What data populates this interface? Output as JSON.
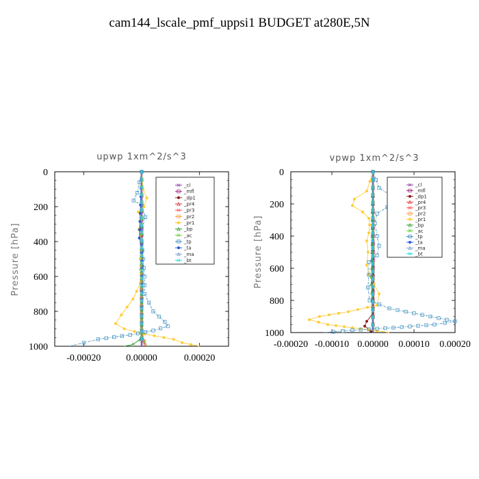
{
  "figure_title": "cam144_lscale_pmf_uppsi1  BUDGET at280E,5N",
  "chart_data": [
    {
      "type": "line",
      "title": "upwp   1xm^2/s^3",
      "ylabel": "Pressure [hPa]",
      "xlim": [
        -0.0003,
        0.0003
      ],
      "ylim": [
        1000,
        0
      ],
      "xticks": [
        -0.0002,
        0,
        0.0002
      ],
      "xtick_labels": [
        "-0.00020",
        "0.00000",
        "0.00020"
      ],
      "yticks": [
        0,
        200,
        400,
        600,
        800,
        1000
      ],
      "ytick_labels": [
        "0",
        "200",
        "400",
        "600",
        "800",
        "1000"
      ],
      "legend_position": "upper-right",
      "series": [
        {
          "name": "_cl",
          "color": "#8e44ad",
          "points": [
            [
              0,
              0
            ],
            [
              0,
              500
            ],
            [
              0,
              1000
            ]
          ]
        },
        {
          "name": "_mfl",
          "color": "#9b1b7a",
          "points": [
            [
              0,
              0
            ],
            [
              0,
              500
            ],
            [
              0,
              1000
            ]
          ]
        },
        {
          "name": "_dp1",
          "color": "#8b1a1a",
          "points": [
            [
              0,
              0
            ],
            [
              0,
              500
            ],
            [
              0,
              1000
            ]
          ]
        },
        {
          "name": "_pr4",
          "color": "#e03030",
          "points": [
            [
              0,
              0
            ],
            [
              0,
              900
            ],
            [
              5e-06,
              960
            ],
            [
              1e-05,
              1000
            ]
          ]
        },
        {
          "name": "_pr3",
          "color": "#ff5050",
          "points": [
            [
              0,
              0
            ],
            [
              0,
              900
            ],
            [
              8e-06,
              970
            ],
            [
              1.5e-05,
              1000
            ]
          ]
        },
        {
          "name": "_pr2",
          "color": "#ff9933",
          "points": [
            [
              0,
              0
            ],
            [
              0,
              1000
            ]
          ]
        },
        {
          "name": "_pr1",
          "color": "#ffcc33",
          "points": [
            [
              0,
              0
            ],
            [
              5e-06,
              100
            ],
            [
              1.8e-05,
              150
            ],
            [
              8e-06,
              200
            ],
            [
              -1.2e-05,
              230
            ],
            [
              0,
              270
            ],
            [
              -1e-05,
              330
            ],
            [
              0,
              400
            ],
            [
              -5e-06,
              500
            ],
            [
              -5e-06,
              560
            ],
            [
              -5e-06,
              640
            ],
            [
              -3e-05,
              730
            ],
            [
              -7e-05,
              820
            ],
            [
              -9e-05,
              870
            ],
            [
              -6e-05,
              900
            ],
            [
              1e-05,
              930
            ],
            [
              0.00011,
              960
            ],
            [
              0.00014,
              980
            ],
            [
              0.0002,
              1000
            ]
          ]
        },
        {
          "name": "_bp",
          "color": "#339933",
          "points": [
            [
              0,
              0
            ],
            [
              0,
              920
            ],
            [
              -5e-06,
              960
            ],
            [
              -3e-05,
              990
            ],
            [
              -6e-05,
              1000
            ]
          ]
        },
        {
          "name": "_ac",
          "color": "#66cc33",
          "points": [
            [
              0,
              0
            ],
            [
              0,
              940
            ],
            [
              1e-05,
              975
            ],
            [
              2e-05,
              1000
            ]
          ]
        },
        {
          "name": "_tp",
          "color": "#3388bb",
          "points": [
            [
              0,
              0
            ],
            [
              -1.5e-05,
              120
            ],
            [
              -2.8e-05,
              165
            ],
            [
              0,
              190
            ],
            [
              1.3e-05,
              260
            ],
            [
              0,
              330
            ],
            [
              0,
              400
            ],
            [
              5e-06,
              500
            ],
            [
              1e-05,
              600
            ],
            [
              1e-05,
              700
            ],
            [
              4e-05,
              800
            ],
            [
              8e-05,
              860
            ],
            [
              9e-05,
              885
            ],
            [
              4e-05,
              910
            ],
            [
              -4e-05,
              935
            ],
            [
              -0.00015,
              960
            ],
            [
              -0.0002,
              980
            ],
            [
              -0.00025,
              1000
            ]
          ]
        },
        {
          "name": "_ta",
          "color": "#2255dd",
          "points": [
            [
              0,
              0
            ],
            [
              -8e-06,
              380
            ],
            [
              0,
              420
            ],
            [
              0,
              1000
            ]
          ]
        },
        {
          "name": "_ma",
          "color": "#7799cc",
          "points": [
            [
              0,
              0
            ],
            [
              0,
              1000
            ]
          ]
        },
        {
          "name": "_bt",
          "color": "#22dddd",
          "points": [
            [
              0,
              0
            ],
            [
              0,
              1000
            ]
          ]
        }
      ]
    },
    {
      "type": "line",
      "title": "vpwp   1xm^2/s^3",
      "ylabel": "Pressure [hPa]",
      "xlim": [
        -0.0002,
        0.0002
      ],
      "ylim": [
        1000,
        0
      ],
      "xticks": [
        -0.0002,
        -0.0001,
        0,
        0.0001,
        0.0002
      ],
      "xtick_labels": [
        "-0.00020",
        "-0.00010",
        "0.00000",
        "0.00010",
        "0.00020"
      ],
      "yticks": [
        0,
        200,
        400,
        600,
        800,
        1000
      ],
      "ytick_labels": [
        "0",
        "200",
        "400",
        "600",
        "800",
        "1000"
      ],
      "legend_position": "upper-right",
      "series": [
        {
          "name": "_cl",
          "color": "#8e44ad",
          "points": [
            [
              0,
              0
            ],
            [
              0,
              500
            ],
            [
              0,
              1000
            ]
          ]
        },
        {
          "name": "_mfl",
          "color": "#9b1b7a",
          "points": [
            [
              0,
              0
            ],
            [
              0,
              500
            ],
            [
              0,
              1000
            ]
          ]
        },
        {
          "name": "_dp1",
          "color": "#8b1a1a",
          "points": [
            [
              0,
              0
            ],
            [
              0,
              880
            ],
            [
              -1.5e-05,
              930
            ],
            [
              -2e-05,
              960
            ],
            [
              -5e-06,
              990
            ],
            [
              0,
              1000
            ]
          ]
        },
        {
          "name": "_pr4",
          "color": "#e03030",
          "points": [
            [
              0,
              0
            ],
            [
              0,
              1000
            ]
          ]
        },
        {
          "name": "_pr3",
          "color": "#ff5050",
          "points": [
            [
              0,
              0
            ],
            [
              0,
              1000
            ]
          ]
        },
        {
          "name": "_pr2",
          "color": "#ff9933",
          "points": [
            [
              0,
              0
            ],
            [
              0,
              1000
            ]
          ]
        },
        {
          "name": "_pr1",
          "color": "#ffcc33",
          "points": [
            [
              0,
              0
            ],
            [
              -1.5e-05,
              120
            ],
            [
              -4.5e-05,
              170
            ],
            [
              -5e-05,
              210
            ],
            [
              -2.5e-05,
              250
            ],
            [
              -1e-05,
              290
            ],
            [
              -8e-06,
              330
            ],
            [
              -1e-05,
              380
            ],
            [
              -1.5e-05,
              430
            ],
            [
              -1.2e-05,
              500
            ],
            [
              -1.5e-05,
              580
            ],
            [
              -1e-05,
              640
            ],
            [
              3e-06,
              700
            ],
            [
              1.5e-05,
              760
            ],
            [
              1e-05,
              830
            ],
            [
              -6e-05,
              870
            ],
            [
              -0.00013,
              900
            ],
            [
              -0.000155,
              920
            ],
            [
              -0.00011,
              950
            ],
            [
              1e-05,
              990
            ],
            [
              4e-05,
              1000
            ]
          ]
        },
        {
          "name": "_bp",
          "color": "#339933",
          "points": [
            [
              0,
              0
            ],
            [
              -2e-06,
              600
            ],
            [
              -4e-06,
              700
            ],
            [
              0,
              800
            ],
            [
              0,
              1000
            ]
          ]
        },
        {
          "name": "_ac",
          "color": "#66cc33",
          "points": [
            [
              0,
              0
            ],
            [
              0,
              1000
            ]
          ]
        },
        {
          "name": "_tp",
          "color": "#3388bb",
          "points": [
            [
              0,
              0
            ],
            [
              1.5e-05,
              100
            ],
            [
              4.5e-05,
              150
            ],
            [
              5.5e-05,
              180
            ],
            [
              3.5e-05,
              220
            ],
            [
              1e-05,
              260
            ],
            [
              5e-06,
              320
            ],
            [
              1e-05,
              400
            ],
            [
              1.5e-05,
              460
            ],
            [
              1e-05,
              520
            ],
            [
              -1e-05,
              560
            ],
            [
              -1e-05,
              640
            ],
            [
              -1.2e-05,
              720
            ],
            [
              -8e-06,
              800
            ],
            [
              4e-05,
              850
            ],
            [
              0.00014,
              900
            ],
            [
              0.0002,
              930
            ],
            [
              0.00015,
              950
            ],
            [
              5e-05,
              970
            ],
            [
              -5e-05,
              985
            ],
            [
              -0.00012,
              1000
            ]
          ]
        },
        {
          "name": "_ta",
          "color": "#2255dd",
          "points": [
            [
              0,
              0
            ],
            [
              0,
              1000
            ]
          ]
        },
        {
          "name": "_ma",
          "color": "#7799cc",
          "points": [
            [
              0,
              0
            ],
            [
              0,
              1000
            ]
          ]
        },
        {
          "name": "_bt",
          "color": "#22dddd",
          "points": [
            [
              0,
              0
            ],
            [
              0,
              1000
            ]
          ]
        }
      ]
    }
  ]
}
